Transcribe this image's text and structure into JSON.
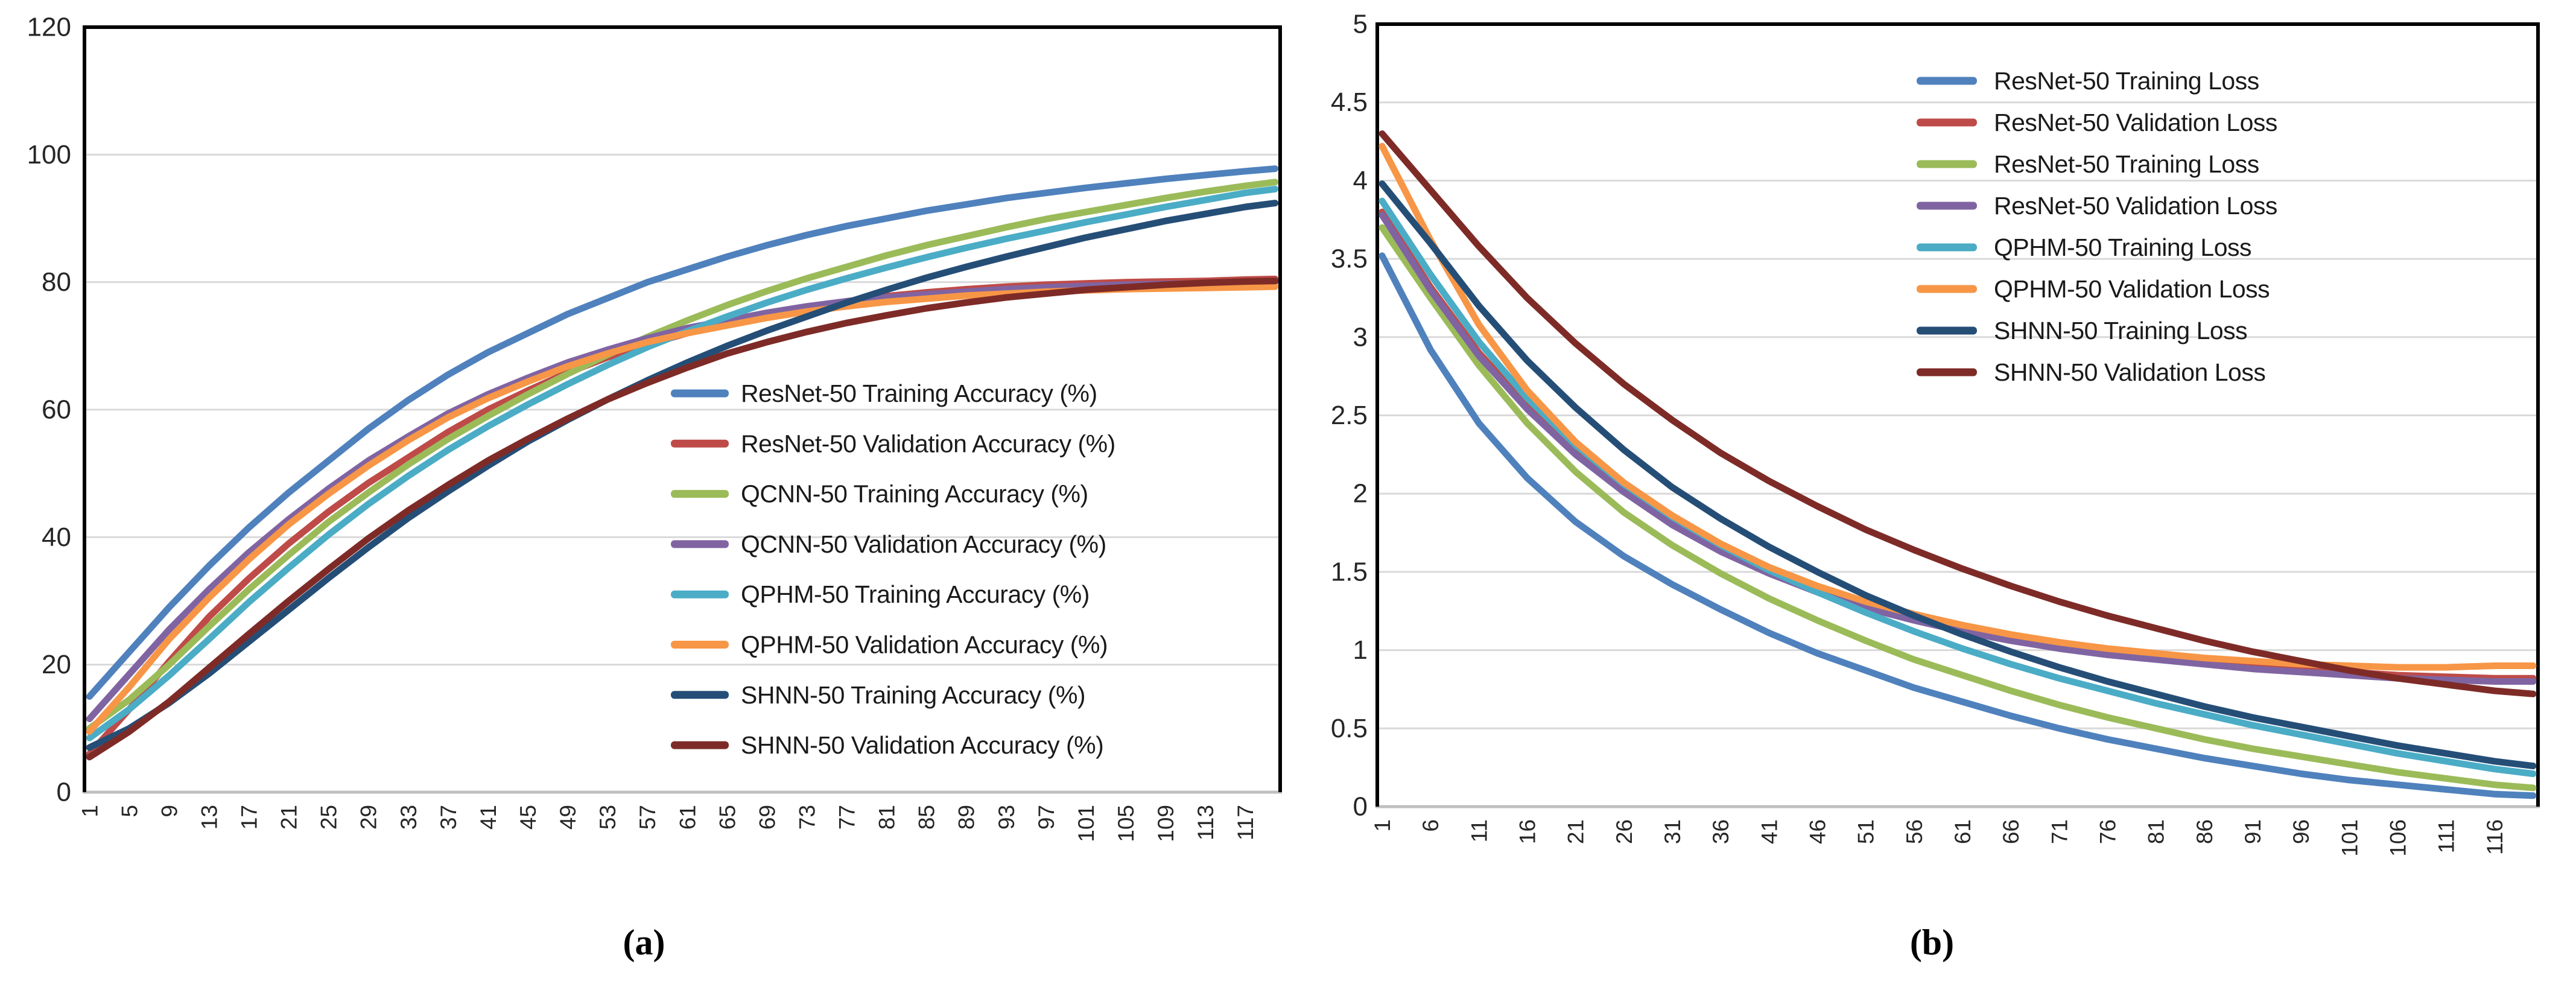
{
  "figure": {
    "captions": {
      "a": "(a)",
      "b": "(b)"
    }
  },
  "chart_data": [
    {
      "id": "a",
      "type": "line",
      "title": "",
      "xlabel": "",
      "ylabel": "",
      "x_range": [
        1,
        120
      ],
      "ylim": [
        0,
        120
      ],
      "grid": true,
      "legend_position": "inside-center-right",
      "yticks": {
        "values": [
          120,
          100,
          80,
          60,
          40,
          20,
          0
        ],
        "labels": [
          "120",
          "100",
          "80",
          "60",
          "40",
          "20",
          "0"
        ]
      },
      "xticks": [
        1,
        5,
        9,
        13,
        17,
        21,
        25,
        29,
        33,
        37,
        41,
        45,
        49,
        53,
        57,
        61,
        65,
        69,
        73,
        77,
        81,
        85,
        89,
        93,
        97,
        101,
        105,
        109,
        113,
        117
      ],
      "x": [
        1,
        5,
        9,
        13,
        17,
        21,
        25,
        29,
        33,
        37,
        41,
        45,
        49,
        53,
        57,
        61,
        65,
        69,
        73,
        77,
        81,
        85,
        89,
        93,
        97,
        101,
        105,
        109,
        113,
        117,
        120
      ],
      "series": [
        {
          "name": "ResNet-50 Training Accuracy (%)",
          "color": "#4F81BD",
          "values": [
            15,
            22,
            29,
            35.5,
            41.5,
            47,
            52,
            57,
            61.5,
            65.5,
            69,
            72,
            75,
            77.5,
            80,
            82,
            84,
            85.8,
            87.4,
            88.8,
            90,
            91.2,
            92.2,
            93.2,
            94,
            94.8,
            95.5,
            96.2,
            96.8,
            97.4,
            97.8
          ]
        },
        {
          "name": "ResNet-50 Validation Accuracy (%)",
          "color": "#BE4B48",
          "values": [
            6,
            13,
            20.5,
            27.5,
            33.5,
            39,
            44,
            48.5,
            52.5,
            56.5,
            60,
            63,
            65.8,
            68.2,
            70.2,
            72,
            73.5,
            74.8,
            76,
            77,
            77.8,
            78.4,
            78.9,
            79.3,
            79.6,
            79.8,
            80,
            80.1,
            80.2,
            80.4,
            80.5
          ]
        },
        {
          "name": "QCNN-50 Training Accuracy (%)",
          "color": "#9BBB59",
          "values": [
            10,
            14.5,
            20,
            26,
            31.8,
            37.2,
            42.4,
            47,
            51.4,
            55.4,
            59,
            62.4,
            65.6,
            68.6,
            71.4,
            74,
            76.4,
            78.6,
            80.6,
            82.4,
            84.2,
            85.8,
            87.2,
            88.6,
            89.9,
            91,
            92.1,
            93.2,
            94.2,
            95.1,
            95.7
          ]
        },
        {
          "name": "QCNN-50 Validation Accuracy (%)",
          "color": "#8064A2",
          "values": [
            11.5,
            18.5,
            25.5,
            31.8,
            37.6,
            42.8,
            47.6,
            52,
            55.8,
            59.4,
            62.4,
            65,
            67.4,
            69.4,
            71.2,
            72.8,
            74,
            75.2,
            76.2,
            77,
            77.6,
            78.1,
            78.5,
            78.9,
            79.2,
            79.4,
            79.6,
            79.7,
            79.8,
            79.9,
            80
          ]
        },
        {
          "name": "QPHM-50 Training Accuracy (%)",
          "color": "#4BACC6",
          "values": [
            8.5,
            13,
            18.3,
            24,
            29.8,
            35.2,
            40.4,
            45.2,
            49.6,
            53.7,
            57.4,
            60.8,
            64,
            67,
            69.8,
            72.3,
            74.6,
            76.8,
            78.8,
            80.6,
            82.3,
            83.9,
            85.4,
            86.8,
            88.1,
            89.4,
            90.6,
            91.8,
            92.9,
            94,
            94.6
          ]
        },
        {
          "name": "QPHM-50 Validation Accuracy (%)",
          "color": "#F79646",
          "values": [
            9.5,
            16.5,
            24,
            30.5,
            36.5,
            42,
            46.8,
            51.2,
            55.2,
            58.8,
            61.8,
            64.4,
            66.8,
            68.8,
            70.6,
            72,
            73.2,
            74.4,
            75.4,
            76.2,
            76.9,
            77.4,
            77.9,
            78.2,
            78.5,
            78.7,
            78.9,
            79,
            79.1,
            79.2,
            79.3
          ]
        },
        {
          "name": "SHNN-50 Training Accuracy (%)",
          "color": "#254E77",
          "values": [
            7,
            10,
            14,
            18.6,
            23.6,
            28.6,
            33.6,
            38.4,
            43,
            47.2,
            51.2,
            55,
            58.4,
            61.6,
            64.6,
            67.4,
            70,
            72.4,
            74.6,
            76.8,
            78.8,
            80.7,
            82.4,
            84,
            85.5,
            87,
            88.3,
            89.6,
            90.7,
            91.8,
            92.4
          ]
        },
        {
          "name": "SHNN-50 Validation Accuracy (%)",
          "color": "#7E2B27",
          "values": [
            5.5,
            9.5,
            14.2,
            19.5,
            24.8,
            30,
            35,
            39.8,
            44.2,
            48.2,
            52,
            55.4,
            58.6,
            61.6,
            64.2,
            66.6,
            68.8,
            70.6,
            72.2,
            73.6,
            74.8,
            75.9,
            76.8,
            77.6,
            78.2,
            78.8,
            79.2,
            79.6,
            79.9,
            80.1,
            80.2
          ]
        }
      ]
    },
    {
      "id": "b",
      "type": "line",
      "title": "",
      "xlabel": "",
      "ylabel": "",
      "x_range": [
        1,
        120
      ],
      "ylim": [
        0,
        5
      ],
      "grid": true,
      "legend_position": "inside-top-right",
      "yticks": {
        "values": [
          5,
          4.5,
          4,
          3.5,
          3,
          2.5,
          2,
          1.5,
          1,
          0.5,
          0
        ],
        "labels": [
          "5",
          "4.5",
          "4",
          "3.5",
          "3",
          "2.5",
          "2",
          "1.5",
          "1",
          "0.5",
          "0"
        ]
      },
      "xticks": [
        1,
        6,
        11,
        16,
        21,
        26,
        31,
        36,
        41,
        46,
        51,
        56,
        61,
        66,
        71,
        76,
        81,
        86,
        91,
        96,
        101,
        106,
        111,
        116
      ],
      "x": [
        1,
        6,
        11,
        16,
        21,
        26,
        31,
        36,
        41,
        46,
        51,
        56,
        61,
        66,
        71,
        76,
        81,
        86,
        91,
        96,
        101,
        106,
        111,
        116,
        120
      ],
      "series": [
        {
          "name": "ResNet-50 Training Loss",
          "color": "#4F81BD",
          "values": [
            3.52,
            2.92,
            2.45,
            2.1,
            1.82,
            1.6,
            1.42,
            1.26,
            1.11,
            0.98,
            0.87,
            0.76,
            0.67,
            0.58,
            0.5,
            0.43,
            0.37,
            0.31,
            0.26,
            0.21,
            0.17,
            0.14,
            0.11,
            0.08,
            0.07
          ]
        },
        {
          "name": "ResNet-50 Validation Loss",
          "color": "#BE4B48",
          "values": [
            3.8,
            3.32,
            2.9,
            2.56,
            2.27,
            2.03,
            1.82,
            1.65,
            1.51,
            1.39,
            1.29,
            1.21,
            1.14,
            1.08,
            1.03,
            0.99,
            0.96,
            0.93,
            0.9,
            0.88,
            0.86,
            0.84,
            0.83,
            0.82,
            0.82
          ]
        },
        {
          "name": "ResNet-50 Training Loss",
          "color": "#9BBB59",
          "values": [
            3.7,
            3.25,
            2.82,
            2.45,
            2.14,
            1.88,
            1.67,
            1.49,
            1.33,
            1.19,
            1.06,
            0.94,
            0.84,
            0.74,
            0.65,
            0.57,
            0.5,
            0.43,
            0.37,
            0.32,
            0.27,
            0.22,
            0.18,
            0.14,
            0.12
          ]
        },
        {
          "name": "ResNet-50 Validation Loss",
          "color": "#8064A2",
          "values": [
            3.78,
            3.3,
            2.88,
            2.54,
            2.25,
            2.01,
            1.8,
            1.63,
            1.49,
            1.37,
            1.27,
            1.19,
            1.12,
            1.06,
            1.01,
            0.97,
            0.94,
            0.91,
            0.88,
            0.86,
            0.84,
            0.82,
            0.81,
            0.8,
            0.8
          ]
        },
        {
          "name": "QPHM-50 Training Loss",
          "color": "#4BACC6",
          "values": [
            3.87,
            3.4,
            2.97,
            2.61,
            2.31,
            2.06,
            1.85,
            1.67,
            1.51,
            1.37,
            1.24,
            1.12,
            1.01,
            0.91,
            0.82,
            0.74,
            0.66,
            0.59,
            0.52,
            0.46,
            0.4,
            0.34,
            0.29,
            0.24,
            0.21
          ]
        },
        {
          "name": "QPHM-50 Validation Loss",
          "color": "#F79646",
          "values": [
            4.22,
            3.62,
            3.08,
            2.66,
            2.33,
            2.07,
            1.86,
            1.68,
            1.53,
            1.41,
            1.31,
            1.23,
            1.16,
            1.1,
            1.05,
            1.01,
            0.98,
            0.95,
            0.93,
            0.91,
            0.9,
            0.89,
            0.89,
            0.9,
            0.9
          ]
        },
        {
          "name": "SHNN-50 Training Loss",
          "color": "#254E77",
          "values": [
            3.98,
            3.6,
            3.2,
            2.85,
            2.55,
            2.28,
            2.04,
            1.84,
            1.66,
            1.5,
            1.35,
            1.22,
            1.1,
            0.99,
            0.89,
            0.8,
            0.72,
            0.64,
            0.57,
            0.51,
            0.45,
            0.39,
            0.34,
            0.29,
            0.26
          ]
        },
        {
          "name": "SHNN-50 Validation Loss",
          "color": "#7E2B27",
          "values": [
            4.3,
            3.94,
            3.58,
            3.25,
            2.96,
            2.7,
            2.47,
            2.26,
            2.08,
            1.92,
            1.77,
            1.64,
            1.52,
            1.41,
            1.31,
            1.22,
            1.14,
            1.06,
            0.99,
            0.93,
            0.87,
            0.82,
            0.78,
            0.74,
            0.72
          ]
        }
      ]
    }
  ]
}
